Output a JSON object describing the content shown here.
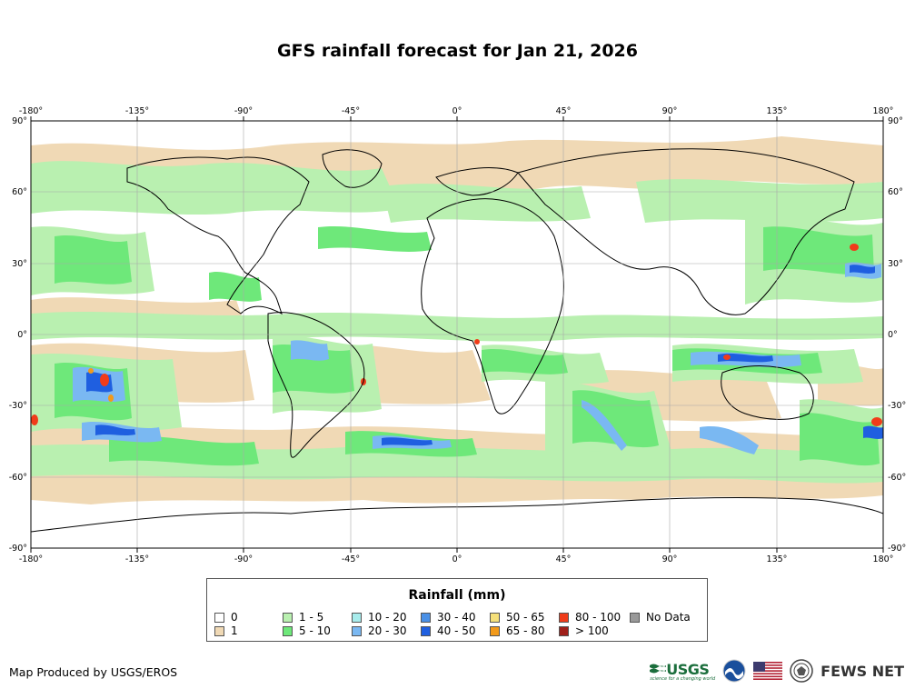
{
  "title": "GFS rainfall forecast for Jan 21, 2026",
  "axes": {
    "top_lon_labels": [
      "-180°",
      "-135°",
      "-90°",
      "-45°",
      "0°",
      "45°",
      "90°",
      "135°",
      "180°"
    ],
    "bottom_lon_labels": [
      "-180°",
      "-135°",
      "-90°",
      "-45°",
      "0°",
      "45°",
      "90°",
      "135°",
      "180°"
    ],
    "left_lat_labels": [
      "90°",
      "60°",
      "30°",
      "0°",
      "-30°",
      "-60°",
      "-90°"
    ],
    "right_lat_labels": [
      "90°",
      "60°",
      "30°",
      "0°",
      "-30°",
      "-60°",
      "-90°"
    ]
  },
  "legend": {
    "title": "Rainfall (mm)",
    "items": [
      {
        "label": "0",
        "color": "#ffffff"
      },
      {
        "label": "1",
        "color": "#f0d9b5"
      },
      {
        "label": "1 - 5",
        "color": "#b9f0b0"
      },
      {
        "label": "5 - 10",
        "color": "#6ee87a"
      },
      {
        "label": "10 - 20",
        "color": "#a8ecec"
      },
      {
        "label": "20 - 30",
        "color": "#7ab8f2"
      },
      {
        "label": "30 - 40",
        "color": "#4a90e6"
      },
      {
        "label": "40 - 50",
        "color": "#1f5fe0"
      },
      {
        "label": "50 - 65",
        "color": "#f5e07a"
      },
      {
        "label": "65 - 80",
        "color": "#f29a1a"
      },
      {
        "label": "80 - 100",
        "color": "#f03c1a"
      },
      {
        "label": "> 100",
        "color": "#a0201a"
      },
      {
        "label": "No Data",
        "color": "#999999"
      }
    ]
  },
  "credit": "Map Produced by USGS/EROS",
  "logos": {
    "usgs": "USGS",
    "usgs_tagline": "science for a changing world",
    "fews": "FEWS NET"
  }
}
